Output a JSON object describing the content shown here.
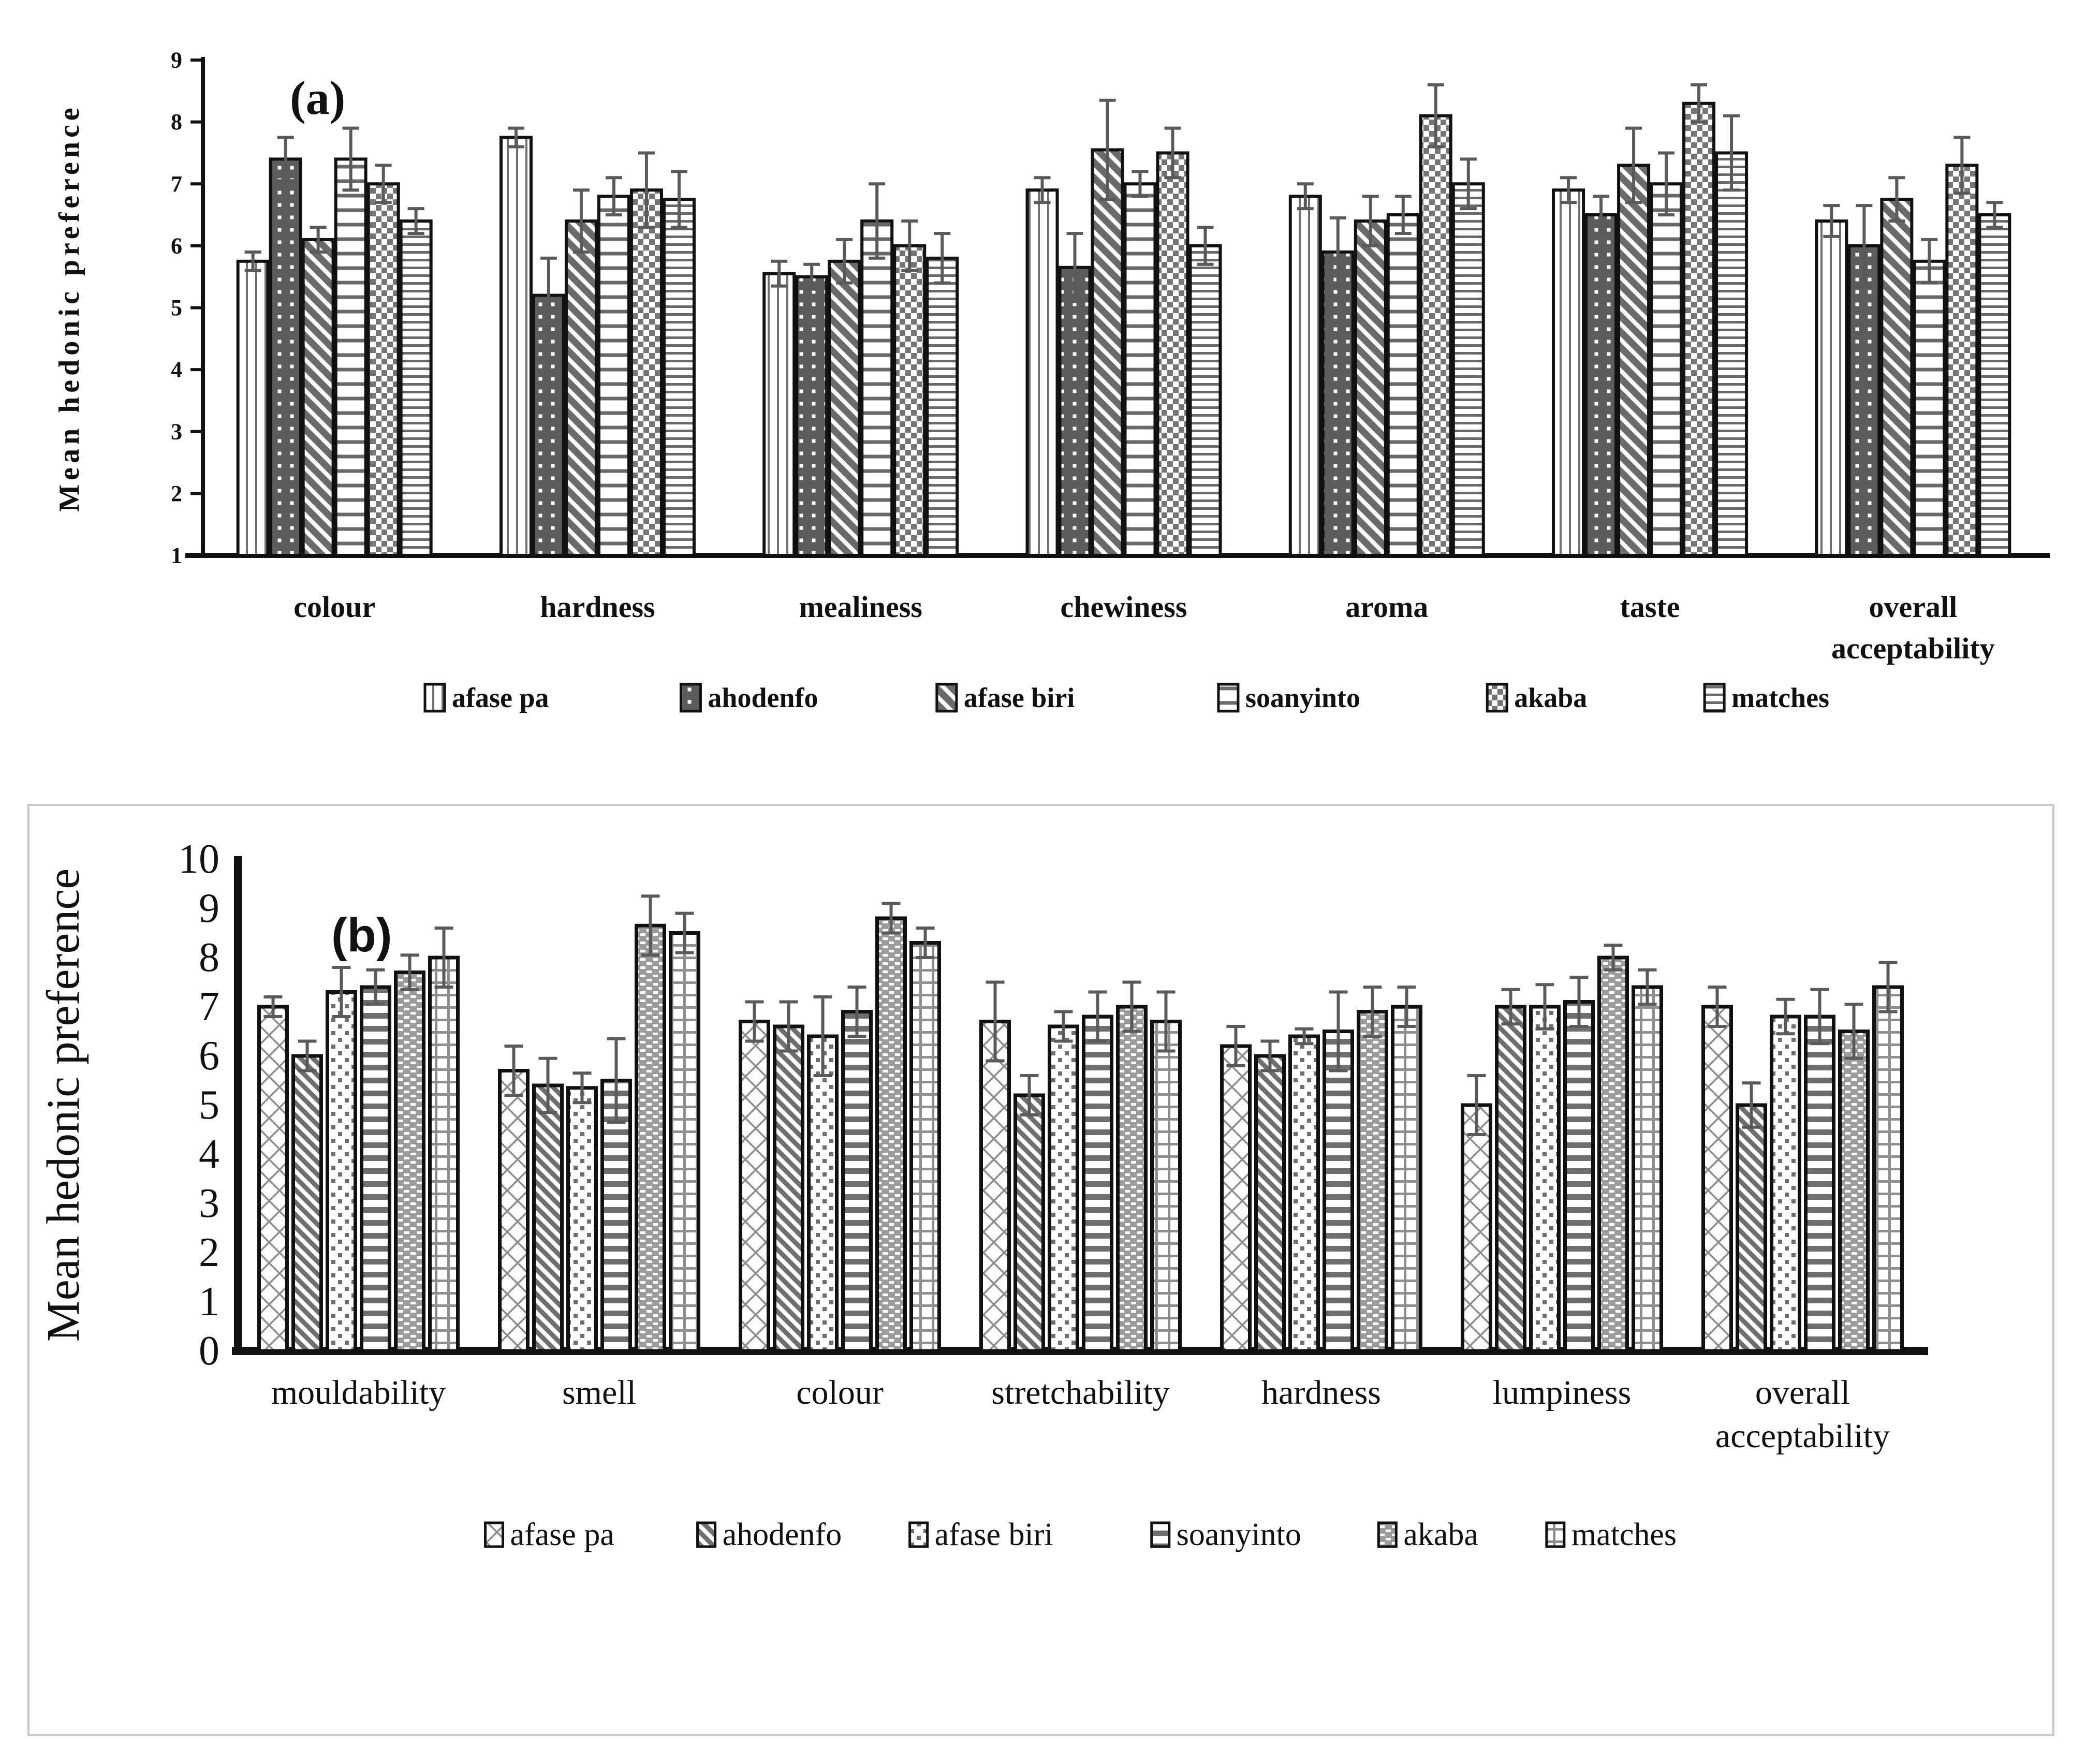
{
  "figure_title": "",
  "colors": {
    "ink": "#111111",
    "error_bar": "#5a5a5a",
    "pattern_gray": "#6e6e6e",
    "dark_fill": "#5c5c5c",
    "frame_gray": "#c8c8c8",
    "background": "#ffffff"
  },
  "chart_data": [
    {
      "type": "bar",
      "panel_letter": "(a)",
      "title": "",
      "xlabel": "",
      "ylabel": "Mean hedonic preference",
      "ylim": [
        1,
        9
      ],
      "yticks": [
        1,
        2,
        3,
        4,
        5,
        6,
        7,
        8,
        9
      ],
      "grid": false,
      "legend_position": "bottom",
      "error_bars": "symmetric",
      "categories": [
        "colour",
        "hardness",
        "mealiness",
        "chewiness",
        "aroma",
        "taste",
        "overall acceptability"
      ],
      "series": [
        {
          "name": "afase pa",
          "pattern": "vertical-stripes",
          "values": [
            5.75,
            7.75,
            5.55,
            6.9,
            6.8,
            6.9,
            6.4
          ],
          "errors": [
            0.15,
            0.15,
            0.2,
            0.2,
            0.2,
            0.2,
            0.25
          ]
        },
        {
          "name": "ahodenfo",
          "pattern": "dark-white-dots",
          "values": [
            7.4,
            5.2,
            5.5,
            5.65,
            5.9,
            6.5,
            6.0
          ],
          "errors": [
            0.35,
            0.6,
            0.2,
            0.55,
            0.55,
            0.3,
            0.65
          ]
        },
        {
          "name": "afase biri",
          "pattern": "diagonal-stripes-wide",
          "values": [
            6.1,
            6.4,
            5.75,
            7.55,
            6.4,
            7.3,
            6.75
          ],
          "errors": [
            0.2,
            0.5,
            0.35,
            0.8,
            0.4,
            0.6,
            0.35
          ]
        },
        {
          "name": "soanyinto",
          "pattern": "horizontal-lines",
          "values": [
            7.4,
            6.8,
            6.4,
            7.0,
            6.5,
            7.0,
            5.75
          ],
          "errors": [
            0.5,
            0.3,
            0.6,
            0.2,
            0.3,
            0.5,
            0.35
          ]
        },
        {
          "name": "akaba",
          "pattern": "checkerboard",
          "values": [
            7.0,
            6.9,
            6.0,
            7.5,
            8.1,
            8.3,
            7.3
          ],
          "errors": [
            0.3,
            0.6,
            0.4,
            0.4,
            0.5,
            0.3,
            0.45
          ]
        },
        {
          "name": "matches",
          "pattern": "horizontal-lines-dense",
          "values": [
            6.4,
            6.75,
            5.8,
            6.0,
            7.0,
            7.5,
            6.5
          ],
          "errors": [
            0.2,
            0.45,
            0.4,
            0.3,
            0.4,
            0.6,
            0.2
          ]
        }
      ]
    },
    {
      "type": "bar",
      "panel_letter": "(b)",
      "title": "",
      "xlabel": "",
      "ylabel": "Mean hedonic preference",
      "ylim": [
        0,
        10
      ],
      "yticks": [
        0,
        1,
        2,
        3,
        4,
        5,
        6,
        7,
        8,
        9,
        10
      ],
      "grid": false,
      "legend_position": "bottom",
      "error_bars": "symmetric",
      "categories": [
        "mouldability",
        "smell",
        "colour",
        "stretchability",
        "hardness",
        "lumpiness",
        "overall acceptability"
      ],
      "series": [
        {
          "name": "afase pa",
          "pattern": "diamond-crosshatch",
          "values": [
            7.0,
            5.7,
            6.7,
            6.7,
            6.2,
            5.0,
            7.0
          ],
          "errors": [
            0.2,
            0.5,
            0.4,
            0.8,
            0.4,
            0.6,
            0.4
          ]
        },
        {
          "name": "ahodenfo",
          "pattern": "diagonal-stripes",
          "values": [
            6.0,
            5.4,
            6.6,
            5.2,
            6.0,
            7.0,
            5.0
          ],
          "errors": [
            0.3,
            0.55,
            0.5,
            0.4,
            0.3,
            0.35,
            0.45
          ]
        },
        {
          "name": "afase biri",
          "pattern": "square-dots",
          "values": [
            7.3,
            5.35,
            6.4,
            6.6,
            6.4,
            7.0,
            6.8
          ],
          "errors": [
            0.5,
            0.3,
            0.8,
            0.3,
            0.15,
            0.45,
            0.35
          ]
        },
        {
          "name": "soanyinto",
          "pattern": "horizontal-bars-thick",
          "values": [
            7.4,
            5.5,
            6.9,
            6.8,
            6.5,
            7.1,
            6.8
          ],
          "errors": [
            0.35,
            0.85,
            0.5,
            0.5,
            0.8,
            0.5,
            0.55
          ]
        },
        {
          "name": "akaba",
          "pattern": "gray-white-dashes",
          "values": [
            7.7,
            8.65,
            8.8,
            7.0,
            6.9,
            8.0,
            6.5
          ],
          "errors": [
            0.35,
            0.6,
            0.3,
            0.5,
            0.5,
            0.25,
            0.55
          ]
        },
        {
          "name": "matches",
          "pattern": "grid-plaid",
          "values": [
            8.0,
            8.5,
            8.3,
            6.7,
            7.0,
            7.4,
            7.4
          ],
          "errors": [
            0.6,
            0.4,
            0.3,
            0.6,
            0.4,
            0.35,
            0.5
          ]
        }
      ]
    }
  ]
}
